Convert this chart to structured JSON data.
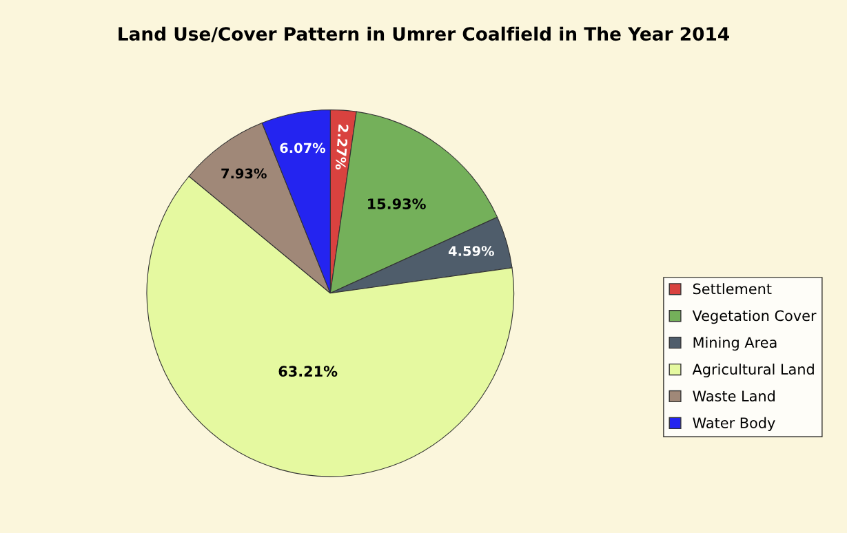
{
  "chart_data": {
    "type": "pie",
    "title": "Land Use/Cover Pattern in Umrer Coalfield in The Year 2014",
    "categories": [
      "Settlement",
      "Vegetation Cover",
      "Mining Area",
      "Agricultural Land",
      "Waste Land",
      "Water Body"
    ],
    "values": [
      2.27,
      15.93,
      4.59,
      63.21,
      7.93,
      6.07
    ],
    "colors": [
      "#d9423f",
      "#74b05a",
      "#4f5d6b",
      "#e5f9a0",
      "#a08878",
      "#2424f0"
    ],
    "value_labels": [
      "2.27%",
      "15.93%",
      "4.59%",
      "63.21%",
      "7.93%",
      "6.07%"
    ],
    "legend": "right"
  }
}
